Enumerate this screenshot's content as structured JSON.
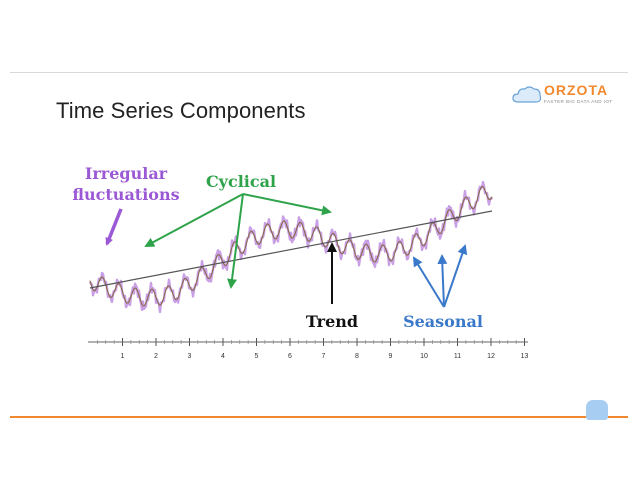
{
  "slide": {
    "title": "Time Series Components"
  },
  "logo": {
    "wordmark": "ORZOTA",
    "tagline": "FASTER BIG DATA AND IOT"
  },
  "diagram": {
    "labels": {
      "irregular_line1": "Irregular",
      "irregular_line2": "fluctuations",
      "cyclical": "Cyclical",
      "trend": "Trend",
      "seasonal": "Seasonal"
    },
    "axis_ticks": [
      "1",
      "2",
      "3",
      "4",
      "5",
      "6",
      "7",
      "8",
      "9",
      "10",
      "11",
      "12",
      "13"
    ],
    "colors": {
      "irregular": "#9b59d6",
      "cyclical": "#2fa34a",
      "trend": "#111111",
      "seasonal": "#3a78c9",
      "series_raw": "#c9a0e6",
      "series_smooth": "#8a6a4a",
      "accent": "#f0892f"
    }
  }
}
